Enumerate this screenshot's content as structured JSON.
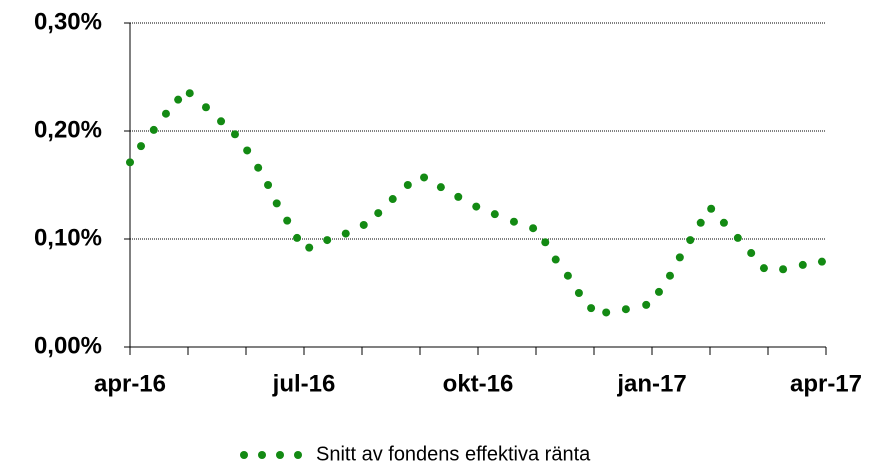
{
  "chart_data": {
    "type": "scatter",
    "xlim": [
      0,
      12
    ],
    "xticks": [
      {
        "value": 0,
        "label": "apr-16"
      },
      {
        "value": 3,
        "label": "jul-16"
      },
      {
        "value": 6,
        "label": "okt-16"
      },
      {
        "value": 9,
        "label": "jan-17"
      },
      {
        "value": 12,
        "label": "apr-17"
      }
    ],
    "xminorticks": [
      1,
      2,
      4,
      5,
      7,
      8,
      10,
      11
    ],
    "ylim": [
      0,
      0.3
    ],
    "yticks": [
      {
        "value": 0,
        "label": "0,00%"
      },
      {
        "value": 0.1,
        "label": "0,10%"
      },
      {
        "value": 0.2,
        "label": "0,20%"
      },
      {
        "value": 0.3,
        "label": "0,30%"
      }
    ],
    "grid": true,
    "legend": "bottom",
    "x": [
      0,
      0.19,
      0.41,
      0.62,
      0.83,
      1.03,
      1.31,
      1.57,
      1.81,
      2.02,
      2.21,
      2.38,
      2.53,
      2.71,
      2.88,
      3.09,
      3.4,
      3.72,
      4.03,
      4.28,
      4.53,
      4.79,
      5.07,
      5.36,
      5.66,
      5.97,
      6.29,
      6.62,
      6.95,
      7.16,
      7.34,
      7.55,
      7.74,
      7.95,
      8.21,
      8.55,
      8.9,
      9.12,
      9.31,
      9.48,
      9.66,
      9.84,
      10.02,
      10.24,
      10.48,
      10.71,
      10.93,
      11.26,
      11.6,
      11.93
    ],
    "series": [
      {
        "name": "Snitt av fondens effektiva ränta",
        "color": "#138a13",
        "values": [
          0.171,
          0.186,
          0.201,
          0.216,
          0.229,
          0.235,
          0.222,
          0.209,
          0.197,
          0.182,
          0.166,
          0.15,
          0.133,
          0.117,
          0.101,
          0.092,
          0.099,
          0.105,
          0.113,
          0.124,
          0.137,
          0.15,
          0.157,
          0.148,
          0.139,
          0.13,
          0.123,
          0.116,
          0.11,
          0.097,
          0.081,
          0.066,
          0.05,
          0.036,
          0.032,
          0.035,
          0.039,
          0.051,
          0.066,
          0.083,
          0.099,
          0.115,
          0.128,
          0.115,
          0.101,
          0.087,
          0.073,
          0.072,
          0.076,
          0.079
        ]
      }
    ]
  }
}
